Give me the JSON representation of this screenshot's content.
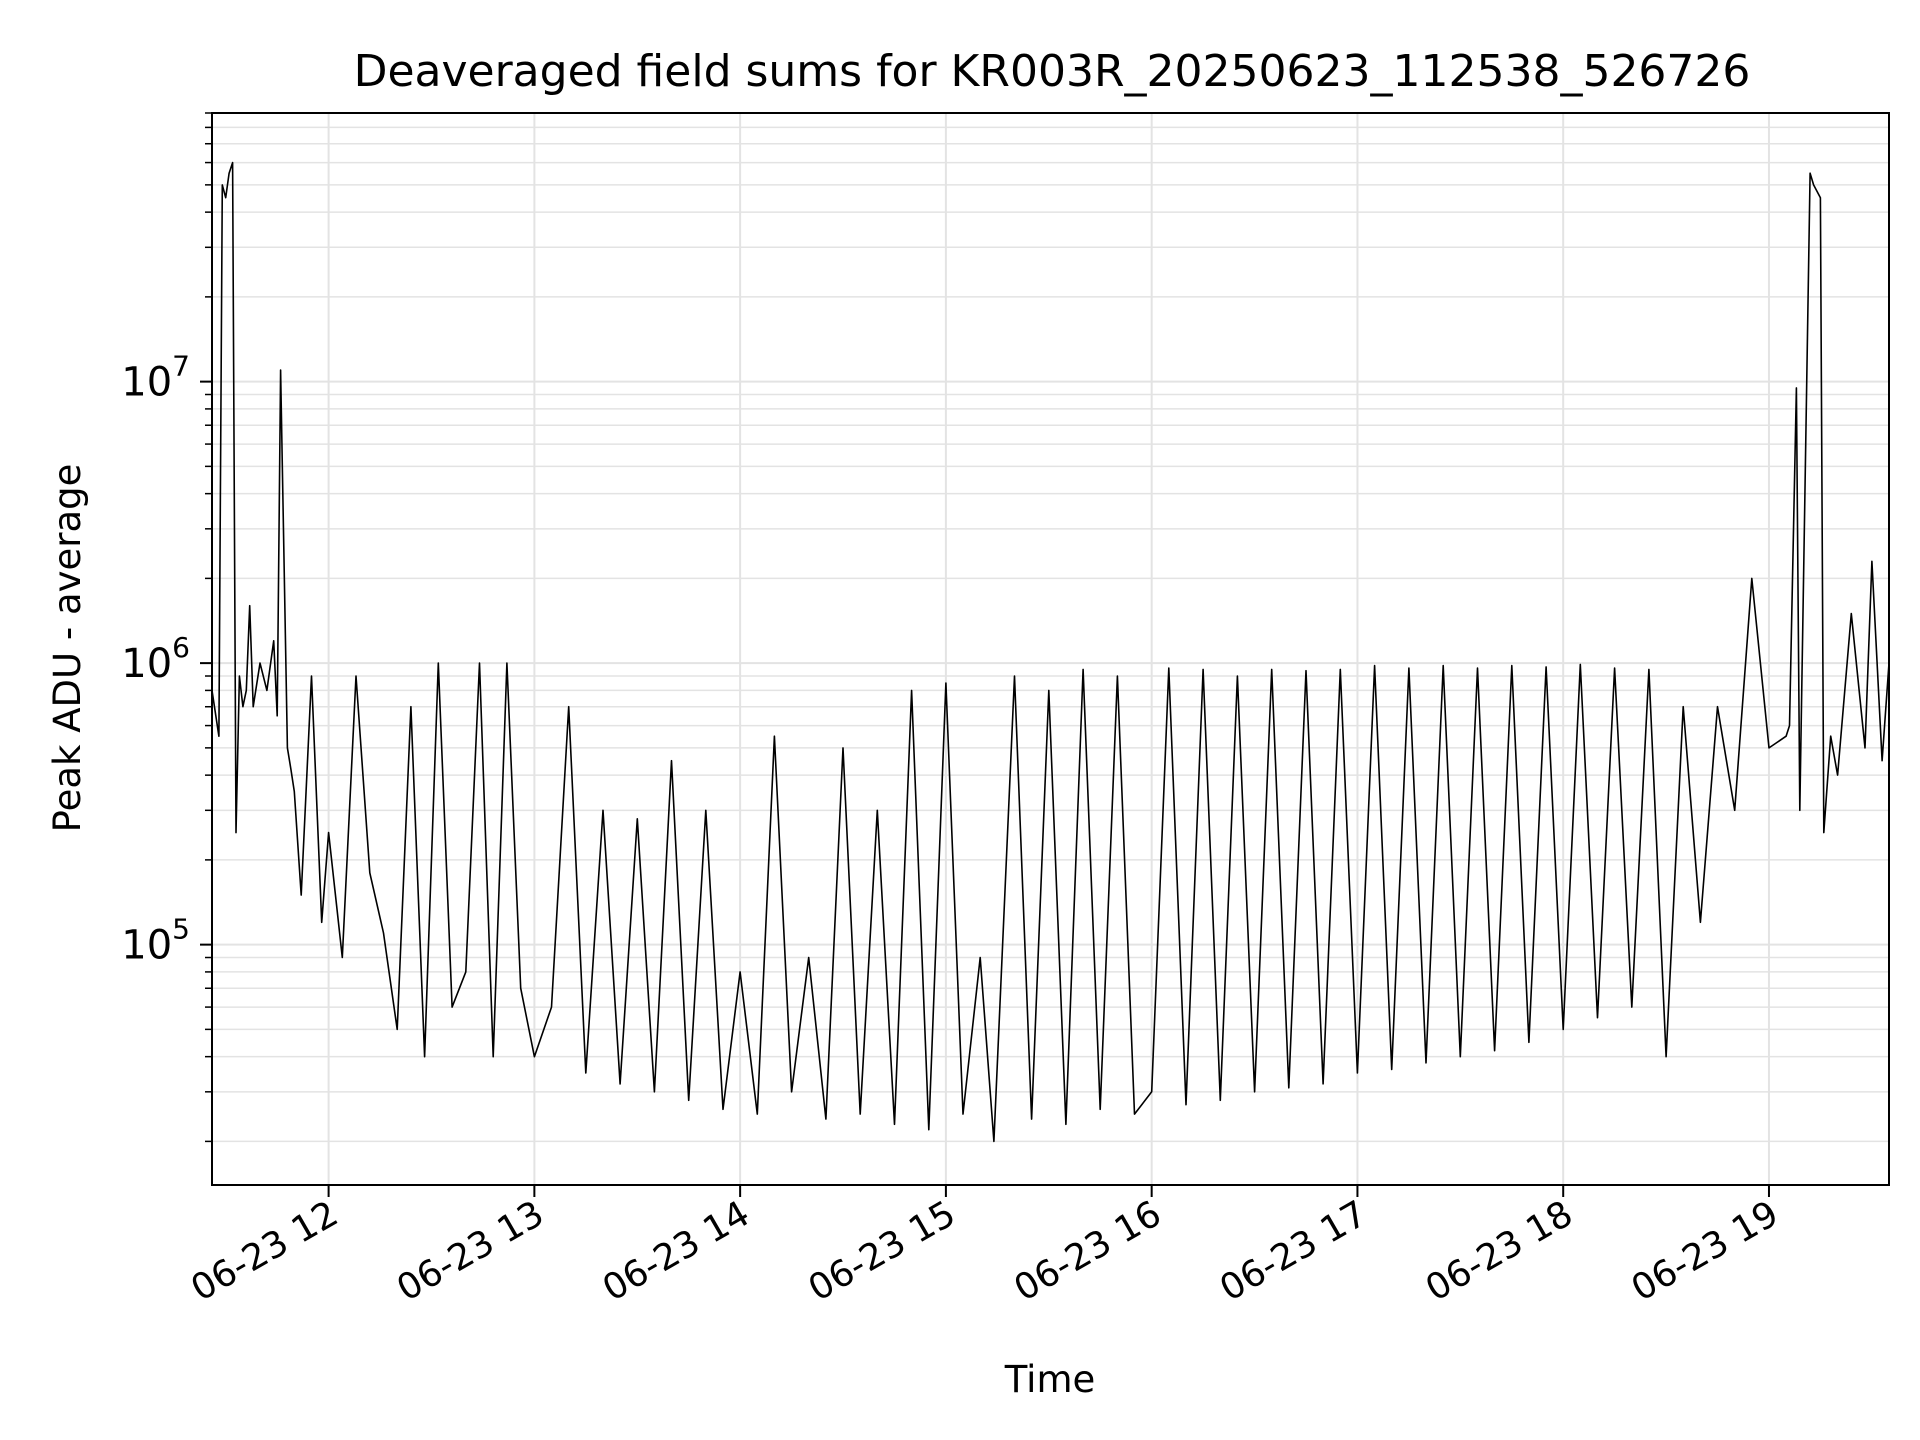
{
  "chart_data": {
    "type": "line",
    "title": "Deaveraged field sums for KR003R_20250623_112538_526726",
    "xlabel": "Time",
    "ylabel": "Peak ADU - average",
    "yscale": "log",
    "xlim": [
      "2025-06-23T11:26",
      "2025-06-23T19:35"
    ],
    "ylim": [
      14000,
      90000000
    ],
    "grid": true,
    "line_color": "#000000",
    "grid_color": "#e3e3e3",
    "x_ticks": [
      {
        "value": "2025-06-23T12:00",
        "label": "06-23 12"
      },
      {
        "value": "2025-06-23T13:00",
        "label": "06-23 13"
      },
      {
        "value": "2025-06-23T14:00",
        "label": "06-23 14"
      },
      {
        "value": "2025-06-23T15:00",
        "label": "06-23 15"
      },
      {
        "value": "2025-06-23T16:00",
        "label": "06-23 16"
      },
      {
        "value": "2025-06-23T17:00",
        "label": "06-23 17"
      },
      {
        "value": "2025-06-23T18:00",
        "label": "06-23 18"
      },
      {
        "value": "2025-06-23T19:00",
        "label": "06-23 19"
      }
    ],
    "y_ticks": [
      {
        "value": 100000,
        "base": "10",
        "exp": "5"
      },
      {
        "value": 1000000,
        "base": "10",
        "exp": "6"
      },
      {
        "value": 10000000,
        "base": "10",
        "exp": "7"
      }
    ],
    "series": [
      {
        "x": [
          "2025-06-23T11:26",
          "2025-06-23T11:28",
          "2025-06-23T11:29",
          "2025-06-23T11:30",
          "2025-06-23T11:31",
          "2025-06-23T11:32",
          "2025-06-23T11:33",
          "2025-06-23T11:34",
          "2025-06-23T11:35",
          "2025-06-23T11:36",
          "2025-06-23T11:37",
          "2025-06-23T11:38",
          "2025-06-23T11:40",
          "2025-06-23T11:42",
          "2025-06-23T11:44",
          "2025-06-23T11:45",
          "2025-06-23T11:46",
          "2025-06-23T11:48",
          "2025-06-23T11:49",
          "2025-06-23T11:50",
          "2025-06-23T11:52",
          "2025-06-23T11:55",
          "2025-06-23T11:58",
          "2025-06-23T12:00",
          "2025-06-23T12:04",
          "2025-06-23T12:08",
          "2025-06-23T12:12",
          "2025-06-23T12:16",
          "2025-06-23T12:20",
          "2025-06-23T12:24",
          "2025-06-23T12:28",
          "2025-06-23T12:32",
          "2025-06-23T12:36",
          "2025-06-23T12:40",
          "2025-06-23T12:44",
          "2025-06-23T12:48",
          "2025-06-23T12:52",
          "2025-06-23T12:56",
          "2025-06-23T13:00",
          "2025-06-23T13:05",
          "2025-06-23T13:10",
          "2025-06-23T13:15",
          "2025-06-23T13:20",
          "2025-06-23T13:25",
          "2025-06-23T13:30",
          "2025-06-23T13:35",
          "2025-06-23T13:40",
          "2025-06-23T13:45",
          "2025-06-23T13:50",
          "2025-06-23T13:55",
          "2025-06-23T14:00",
          "2025-06-23T14:05",
          "2025-06-23T14:10",
          "2025-06-23T14:15",
          "2025-06-23T14:20",
          "2025-06-23T14:25",
          "2025-06-23T14:30",
          "2025-06-23T14:35",
          "2025-06-23T14:40",
          "2025-06-23T14:45",
          "2025-06-23T14:50",
          "2025-06-23T14:55",
          "2025-06-23T15:00",
          "2025-06-23T15:05",
          "2025-06-23T15:10",
          "2025-06-23T15:14",
          "2025-06-23T15:20",
          "2025-06-23T15:25",
          "2025-06-23T15:30",
          "2025-06-23T15:35",
          "2025-06-23T15:40",
          "2025-06-23T15:45",
          "2025-06-23T15:50",
          "2025-06-23T15:55",
          "2025-06-23T16:00",
          "2025-06-23T16:05",
          "2025-06-23T16:10",
          "2025-06-23T16:15",
          "2025-06-23T16:20",
          "2025-06-23T16:25",
          "2025-06-23T16:30",
          "2025-06-23T16:35",
          "2025-06-23T16:40",
          "2025-06-23T16:45",
          "2025-06-23T16:50",
          "2025-06-23T16:55",
          "2025-06-23T17:00",
          "2025-06-23T17:05",
          "2025-06-23T17:10",
          "2025-06-23T17:15",
          "2025-06-23T17:20",
          "2025-06-23T17:25",
          "2025-06-23T17:30",
          "2025-06-23T17:35",
          "2025-06-23T17:40",
          "2025-06-23T17:45",
          "2025-06-23T17:50",
          "2025-06-23T17:55",
          "2025-06-23T18:00",
          "2025-06-23T18:05",
          "2025-06-23T18:10",
          "2025-06-23T18:15",
          "2025-06-23T18:20",
          "2025-06-23T18:25",
          "2025-06-23T18:30",
          "2025-06-23T18:35",
          "2025-06-23T18:40",
          "2025-06-23T18:45",
          "2025-06-23T18:50",
          "2025-06-23T18:55",
          "2025-06-23T19:00",
          "2025-06-23T19:05",
          "2025-06-23T19:06",
          "2025-06-23T19:08",
          "2025-06-23T19:09",
          "2025-06-23T19:12",
          "2025-06-23T19:13",
          "2025-06-23T19:15",
          "2025-06-23T19:16",
          "2025-06-23T19:18",
          "2025-06-23T19:20",
          "2025-06-23T19:24",
          "2025-06-23T19:28",
          "2025-06-23T19:30",
          "2025-06-23T19:33",
          "2025-06-23T19:35"
        ],
        "y": [
          800000,
          550000,
          50000000,
          45000000,
          55000000,
          60000000,
          250000,
          900000,
          700000,
          800000,
          1600000,
          700000,
          1000000,
          800000,
          1200000,
          650000,
          11000000,
          500000,
          420000,
          350000,
          150000,
          900000,
          120000,
          250000,
          90000,
          900000,
          180000,
          110000,
          50000,
          700000,
          40000,
          1000000,
          60000,
          80000,
          1000000,
          40000,
          1000000,
          70000,
          40000,
          60000,
          700000,
          35000,
          300000,
          32000,
          280000,
          30000,
          450000,
          28000,
          300000,
          26000,
          80000,
          25000,
          550000,
          30000,
          90000,
          24000,
          500000,
          25000,
          300000,
          23000,
          800000,
          22000,
          850000,
          25000,
          90000,
          20000,
          900000,
          24000,
          800000,
          23000,
          950000,
          26000,
          900000,
          25000,
          30000,
          960000,
          27000,
          950000,
          28000,
          900000,
          30000,
          950000,
          31000,
          940000,
          32000,
          950000,
          35000,
          980000,
          36000,
          960000,
          38000,
          980000,
          40000,
          960000,
          42000,
          980000,
          45000,
          970000,
          50000,
          990000,
          55000,
          960000,
          60000,
          950000,
          40000,
          700000,
          120000,
          700000,
          300000,
          2000000,
          500000,
          550000,
          600000,
          9500000,
          300000,
          55000000,
          50000000,
          45000000,
          250000,
          550000,
          400000,
          1500000,
          500000,
          2300000,
          450000,
          1000000
        ]
      }
    ]
  }
}
